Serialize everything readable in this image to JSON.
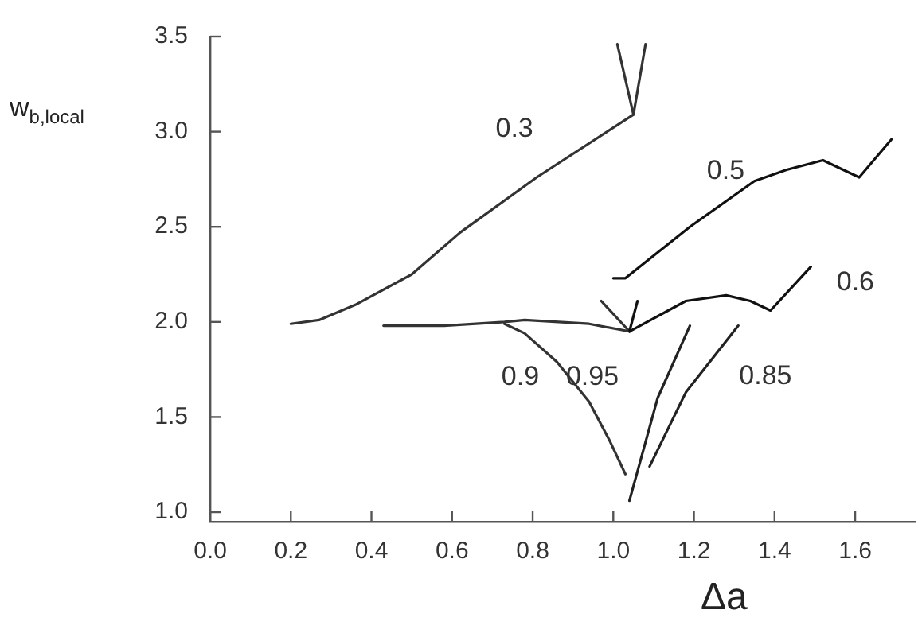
{
  "chart_data": {
    "type": "line",
    "xlabel": "Δa",
    "ylabel": "w$_{b,local}$",
    "xlim": [
      0,
      1.75
    ],
    "ylim": [
      0.95,
      3.5
    ],
    "xticks": [
      {
        "value": 0,
        "label": "0.0"
      },
      0.2,
      0.4,
      0.6,
      0.8,
      {
        "value": 1,
        "label": "1.0"
      },
      1.2,
      1.4,
      1.6
    ],
    "yticks": [
      {
        "value": 1,
        "label": "1.0"
      },
      1.5,
      {
        "value": 2,
        "label": "2.0"
      },
      2.5,
      {
        "value": 3,
        "label": "3.0"
      },
      3.5
    ],
    "grid": false,
    "legend": false,
    "marker": "none",
    "line_style": "solid",
    "series": [
      {
        "color": "#333333",
        "x": [
          0.2,
          0.27,
          0.36,
          0.5,
          0.62,
          0.81,
          1.05,
          1.08
        ],
        "values": [
          1.99,
          2.01,
          2.09,
          2.25,
          2.47,
          2.76,
          3.09,
          3.46
        ]
      },
      {
        "color": "#333333",
        "x": [
          1.05,
          1.01
        ],
        "values": [
          3.09,
          3.46
        ]
      },
      {
        "color": "#111111",
        "x": [
          1.0,
          1.03,
          1.19,
          1.35,
          1.43,
          1.52,
          1.61,
          1.69
        ],
        "values": [
          2.23,
          2.23,
          2.5,
          2.74,
          2.8,
          2.85,
          2.76,
          2.96
        ]
      },
      {
        "color": "#111111",
        "x": [
          1.04,
          1.18,
          1.28,
          1.34,
          1.39,
          1.49
        ],
        "values": [
          1.95,
          2.11,
          2.14,
          2.11,
          2.06,
          2.29
        ]
      },
      {
        "color": "#111111",
        "x": [
          1.04,
          1.06
        ],
        "values": [
          1.95,
          2.11
        ]
      },
      {
        "color": "#333333",
        "x": [
          0.43,
          0.58,
          0.73,
          0.78,
          0.94,
          1.04
        ],
        "values": [
          1.98,
          1.98,
          2.0,
          2.01,
          1.99,
          1.95
        ]
      },
      {
        "color": "#333333",
        "x": [
          1.04,
          0.97
        ],
        "values": [
          1.95,
          2.11
        ]
      },
      {
        "color": "#333333",
        "x": [
          0.73,
          0.78,
          0.86,
          0.94,
          0.99,
          1.03
        ],
        "values": [
          1.99,
          1.94,
          1.79,
          1.58,
          1.38,
          1.2
        ]
      },
      {
        "color": "#222222",
        "x": [
          1.19,
          1.11,
          1.04
        ],
        "values": [
          1.98,
          1.6,
          1.06
        ]
      },
      {
        "color": "#222222",
        "x": [
          1.31,
          1.18,
          1.09
        ],
        "values": [
          1.98,
          1.63,
          1.24
        ]
      }
    ],
    "annotations": [
      {
        "text": "0.3",
        "x": 0.81,
        "y": 2.76
      },
      {
        "text": "0.5",
        "x": 1.35,
        "y": 2.74
      },
      {
        "text": "0.6",
        "x": 1.49,
        "y": 2.29
      },
      {
        "text": "0.9",
        "x": 0.86,
        "y": 1.79
      },
      {
        "text": "0.95",
        "x": 1.11,
        "y": 1.6
      },
      {
        "text": "0.85",
        "x": 1.18,
        "y": 1.63
      }
    ]
  }
}
